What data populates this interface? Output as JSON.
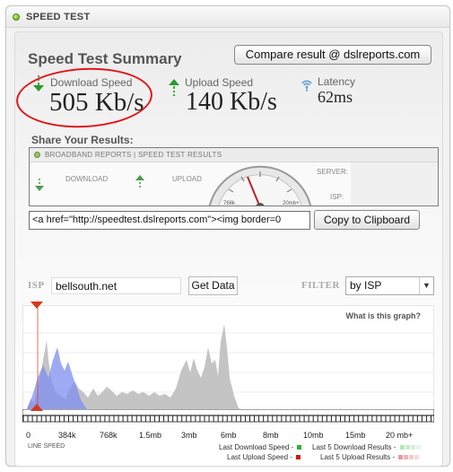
{
  "window": {
    "title": "SPEED TEST"
  },
  "summary": {
    "title": "Speed Test Summary",
    "compare_label": "Compare result @ dslreports.com",
    "download_label": "Download Speed",
    "download_value": "505 Kb/s",
    "upload_label": "Upload Speed",
    "upload_value": "140 Kb/s",
    "latency_label": "Latency",
    "latency_value": "62ms"
  },
  "share": {
    "label": "Share Your Results:",
    "banner": {
      "title": "BROADBAND REPORTS | SPEED TEST RESULTS",
      "download": "DOWNLOAD",
      "upload": "UPLOAD",
      "server": "SERVER:",
      "isp": "ISP:",
      "gauge_left": "768k",
      "gauge_right": "20mb+"
    },
    "embed_code": "<a href=\"http://speedtest.dslreports.com\"><img border=0",
    "copy_label": "Copy to Clipboard"
  },
  "filters": {
    "isp_label": "ISP",
    "isp_value": "bellsouth.net",
    "get_data_label": "Get Data",
    "filter_label": "FILTER",
    "filter_value": "by ISP"
  },
  "graph": {
    "help_link": "What is this graph?",
    "scale_labels": [
      "0",
      "384k",
      "768k",
      "1.5mb",
      "3mb",
      "6mb",
      "8mb",
      "10mb",
      "15mb",
      "20 mb+"
    ],
    "line_speed_label": "LINE SPEED",
    "legend": {
      "last_download": "Last Download Speed -",
      "last_upload": "Last Upload Speed -",
      "last5_download": "Last 5 Download Results -",
      "last5_upload": "Last 5 Upload Results -"
    },
    "colors": {
      "download": "#2db52d",
      "upload": "#d01818",
      "isp_distribution": "#bdbdbd",
      "user_distribution": "#7f8ef0",
      "marker": "#d43a1a"
    }
  }
}
